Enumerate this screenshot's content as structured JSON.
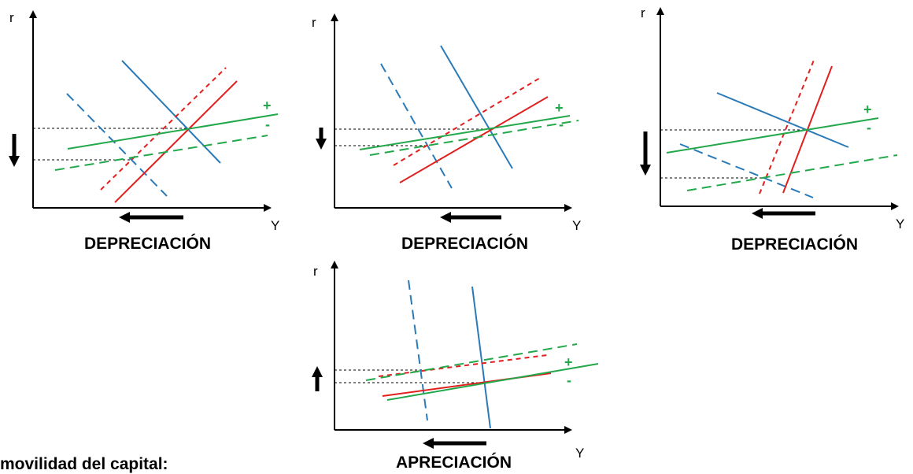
{
  "axis_labels": {
    "vertical": "r",
    "horizontal": "Y"
  },
  "signs": {
    "plus": "+",
    "minus": "-"
  },
  "panels": [
    {
      "caption": "DEPRECIACIÓN"
    },
    {
      "caption": "DEPRECIACIÓN"
    },
    {
      "caption": "DEPRECIACIÓN"
    },
    {
      "caption": "APRECIACIÓN"
    }
  ],
  "footer_text": "movilidad del capital:",
  "colors": {
    "blue": "#2a7ab8",
    "red": "#e0201e",
    "green": "#22a84a",
    "axis": "#000000"
  }
}
